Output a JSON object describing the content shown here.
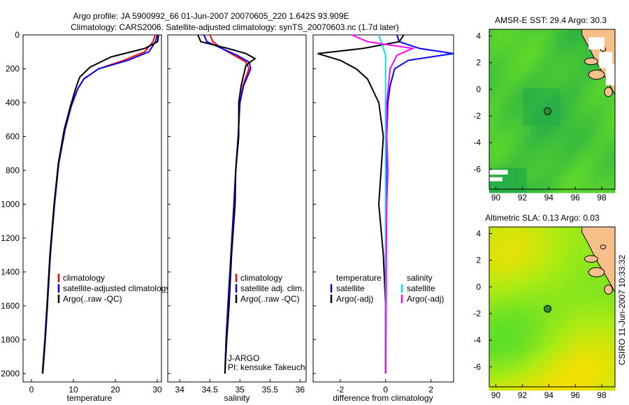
{
  "header": {
    "title_line1": "Argo profile: JA 5900992_66 01-Jun-2007 20070605_220 1.642S 93.909E",
    "title_line2": "Climatology: CARS2006. Satellite-adjusted climatology: synTS_20070603.nc (1.7d later)"
  },
  "stamp": "CSIRO 11-Jun-2007 10:33:32",
  "colors": {
    "climatology": "#ff0000",
    "satellite": "#0000ff",
    "argo": "#000000",
    "sal_satellite": "#00e5ee",
    "sal_argo": "#ff00ff",
    "land": "#f7c08a",
    "float": "#2e8b2e"
  },
  "chart_data": [
    {
      "type": "line",
      "id": "temperature",
      "xlabel": "temperature",
      "ylabel": "",
      "xlim": [
        -2,
        31
      ],
      "ylim": [
        2050,
        0
      ],
      "xticks": [
        0,
        10,
        20,
        30
      ],
      "yticks": [
        0,
        200,
        400,
        600,
        800,
        1000,
        1200,
        1400,
        1600,
        1800,
        2000
      ],
      "series": [
        {
          "name": "climatology",
          "color": "#ff0000",
          "x": [
            29.5,
            29.0,
            27.0,
            22.0,
            16.0,
            12.5,
            11.0,
            9.5,
            8.0,
            6.5,
            5.5,
            4.5,
            3.8,
            3.3,
            2.7
          ],
          "y": [
            0,
            40,
            100,
            150,
            200,
            260,
            320,
            420,
            560,
            760,
            1000,
            1300,
            1600,
            1800,
            2000
          ]
        },
        {
          "name": "satellite-adjusted climatology",
          "color": "#0000ff",
          "x": [
            30.0,
            29.6,
            28.0,
            23.0,
            16.0,
            12.5,
            11.0,
            9.5,
            8.0,
            6.5,
            5.5,
            4.5,
            3.8,
            3.3,
            2.7
          ],
          "y": [
            0,
            40,
            100,
            150,
            200,
            260,
            320,
            420,
            560,
            760,
            1000,
            1300,
            1600,
            1800,
            2000
          ]
        },
        {
          "name": "Argo(..raw -QC)",
          "color": "#000000",
          "x": [
            30.3,
            30.1,
            27.0,
            19.0,
            14.0,
            11.5,
            10.5,
            9.3,
            7.8,
            6.4,
            5.4,
            4.4,
            3.7,
            3.2,
            2.6
          ],
          "y": [
            0,
            40,
            80,
            130,
            190,
            250,
            320,
            420,
            560,
            760,
            1000,
            1300,
            1600,
            1800,
            2000
          ]
        }
      ],
      "legend": [
        "climatology",
        "satellite-adjusted climatology",
        "Argo(..raw -QC)"
      ]
    },
    {
      "type": "line",
      "id": "salinity",
      "xlabel": "salinity",
      "xlim": [
        33.8,
        36.1
      ],
      "ylim": [
        2050,
        0
      ],
      "xticks": [
        34,
        34.5,
        35,
        35.5,
        36
      ],
      "series": [
        {
          "name": "climatology",
          "color": "#ff0000",
          "x": [
            34.5,
            34.55,
            34.7,
            34.9,
            35.1,
            35.15,
            35.05,
            35.0,
            34.97,
            34.93,
            34.9,
            34.85,
            34.8,
            34.77,
            34.75
          ],
          "y": [
            0,
            40,
            80,
            120,
            160,
            200,
            300,
            400,
            600,
            800,
            1000,
            1300,
            1600,
            1800,
            2000
          ]
        },
        {
          "name": "satellite adj. clim.",
          "color": "#0000ff",
          "x": [
            34.4,
            34.45,
            34.7,
            34.95,
            35.15,
            35.18,
            35.06,
            35.0,
            34.97,
            34.93,
            34.9,
            34.85,
            34.8,
            34.77,
            34.75
          ],
          "y": [
            0,
            40,
            80,
            120,
            160,
            200,
            300,
            400,
            600,
            800,
            1000,
            1300,
            1600,
            1800,
            2000
          ]
        },
        {
          "name": "Argo(..raw -QC)",
          "color": "#000000",
          "x": [
            34.3,
            34.35,
            34.8,
            35.1,
            35.25,
            35.1,
            35.02,
            34.98,
            34.98,
            34.93,
            34.92,
            34.86,
            34.82,
            34.78,
            34.75
          ],
          "y": [
            0,
            40,
            80,
            110,
            140,
            180,
            300,
            400,
            600,
            800,
            1000,
            1300,
            1600,
            1800,
            2000
          ]
        }
      ],
      "legend": [
        "climatology",
        "satellite adj. clim.",
        "Argo(..raw -QC)"
      ],
      "annotations": [
        "J-ARGO",
        "PI: kensuke Takeuchi"
      ]
    },
    {
      "type": "line",
      "id": "difference",
      "xlabel": "difference from climatology",
      "xlim": [
        -3.2,
        3.0
      ],
      "ylim": [
        2050,
        0
      ],
      "xticks": [
        -2,
        0,
        2
      ],
      "series": [
        {
          "name": "temperature satellite",
          "color": "#0000ff",
          "x": [
            0.5,
            0.6,
            1.5,
            3.0,
            1.0,
            0.4,
            0.2,
            0.1,
            0.05,
            0.03,
            0.02,
            0.0,
            0.0,
            0.0
          ],
          "y": [
            0,
            40,
            80,
            110,
            150,
            200,
            300,
            400,
            600,
            800,
            1000,
            1300,
            1600,
            2000
          ]
        },
        {
          "name": "temperature Argo(-adj)",
          "color": "#000000",
          "x": [
            0.8,
            0.6,
            -1.0,
            -3.0,
            -2.0,
            -1.3,
            -0.8,
            -0.3,
            -0.1,
            -0.2,
            -0.3,
            -0.1,
            0.0,
            0.0
          ],
          "y": [
            0,
            40,
            80,
            110,
            150,
            200,
            260,
            400,
            600,
            800,
            1000,
            1300,
            1600,
            2000
          ]
        },
        {
          "name": "salinity satellite",
          "color": "#00e5ee",
          "x": [
            -0.3,
            -0.2,
            -0.1,
            0.0,
            0.0,
            0.0,
            0.0,
            0.0,
            0.0,
            0.0,
            0.0,
            0.0
          ],
          "y": [
            0,
            40,
            80,
            120,
            200,
            400,
            600,
            800,
            1000,
            1300,
            1600,
            2000
          ]
        },
        {
          "name": "salinity Argo(-adj)",
          "color": "#ff00ff",
          "x": [
            -1.5,
            -0.8,
            1.2,
            0.5,
            0.2,
            0.05,
            0.05,
            0.1,
            0.05,
            0.03,
            0.02,
            0.0
          ],
          "y": [
            0,
            40,
            80,
            120,
            200,
            400,
            600,
            800,
            1000,
            1300,
            1600,
            2000
          ]
        }
      ],
      "legend_groups": [
        {
          "title": "temperature",
          "items": [
            "satellite",
            "Argo(-adj)"
          ]
        },
        {
          "title": "salinity",
          "items": [
            "satellite",
            "Argo(-adj)"
          ]
        }
      ]
    },
    {
      "type": "heatmap",
      "id": "sst_map",
      "title": "AMSR-E SST: 29.4 Argo: 30.3",
      "xlim": [
        89.5,
        99
      ],
      "ylim": [
        -7.5,
        4.5
      ],
      "xticks": [
        90,
        92,
        94,
        96,
        98
      ],
      "yticks": [
        -6,
        -4,
        -2,
        0,
        2,
        4
      ],
      "float_position": {
        "lon": 93.909,
        "lat": -1.642
      }
    },
    {
      "type": "heatmap",
      "id": "sla_map",
      "title": "Altimetric SLA: 0.13 Argo: 0.03",
      "xlim": [
        89.5,
        99
      ],
      "ylim": [
        -7.5,
        4.5
      ],
      "xticks": [
        90,
        92,
        94,
        96,
        98
      ],
      "yticks": [
        -6,
        -4,
        -2,
        0,
        2,
        4
      ],
      "float_position": {
        "lon": 93.909,
        "lat": -1.642
      }
    }
  ]
}
